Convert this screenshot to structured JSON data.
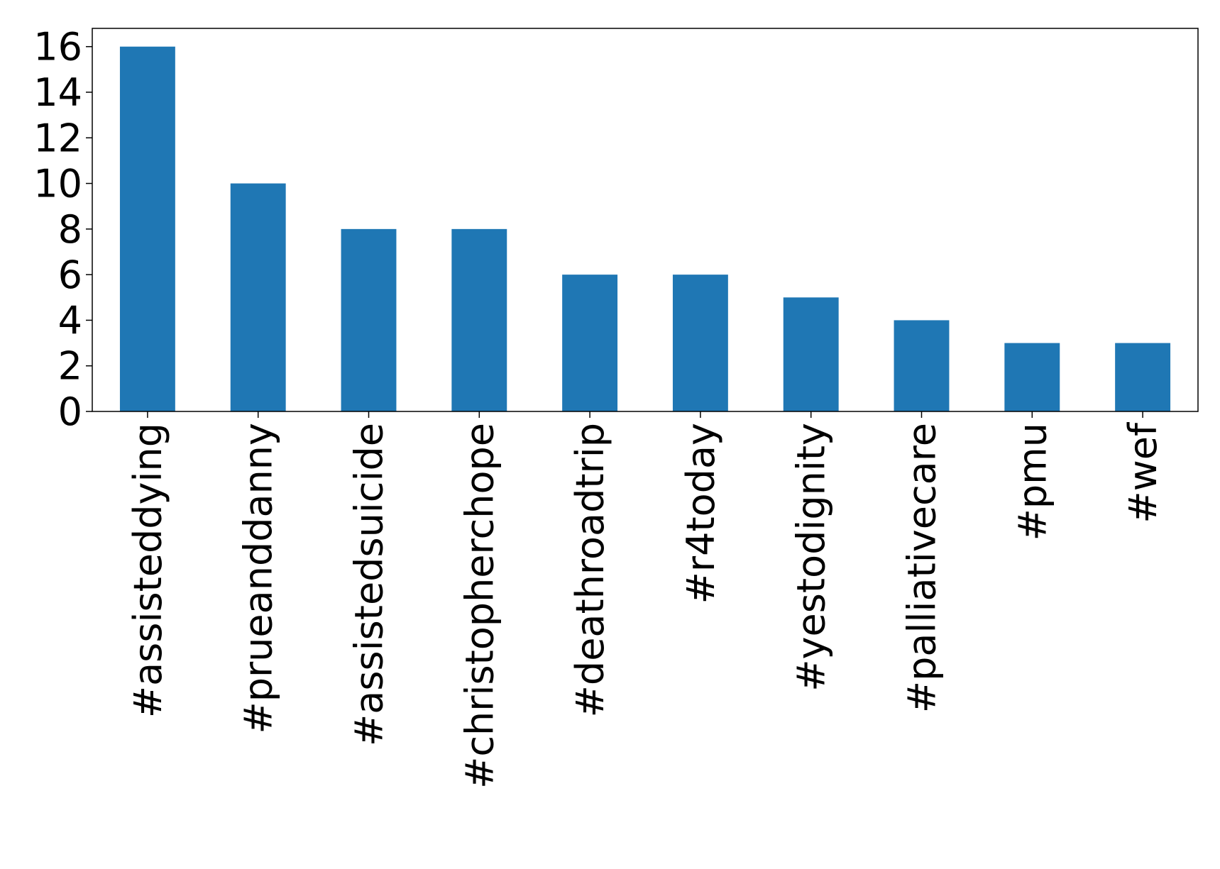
{
  "chart_data": {
    "type": "bar",
    "categories": [
      "#assisteddying",
      "#prueanddanny",
      "#assistedsuicide",
      "#christopherchope",
      "#deathroadtrip",
      "#r4today",
      "#yestodignity",
      "#palliativecare",
      "#pmu",
      "#wef"
    ],
    "values": [
      16,
      10,
      8,
      8,
      6,
      6,
      5,
      4,
      3,
      3
    ],
    "color": "#1f77b4",
    "ylim": [
      0,
      16.8
    ],
    "yticks": [
      0,
      2,
      4,
      6,
      8,
      10,
      12,
      14,
      16
    ],
    "grid": false
  }
}
